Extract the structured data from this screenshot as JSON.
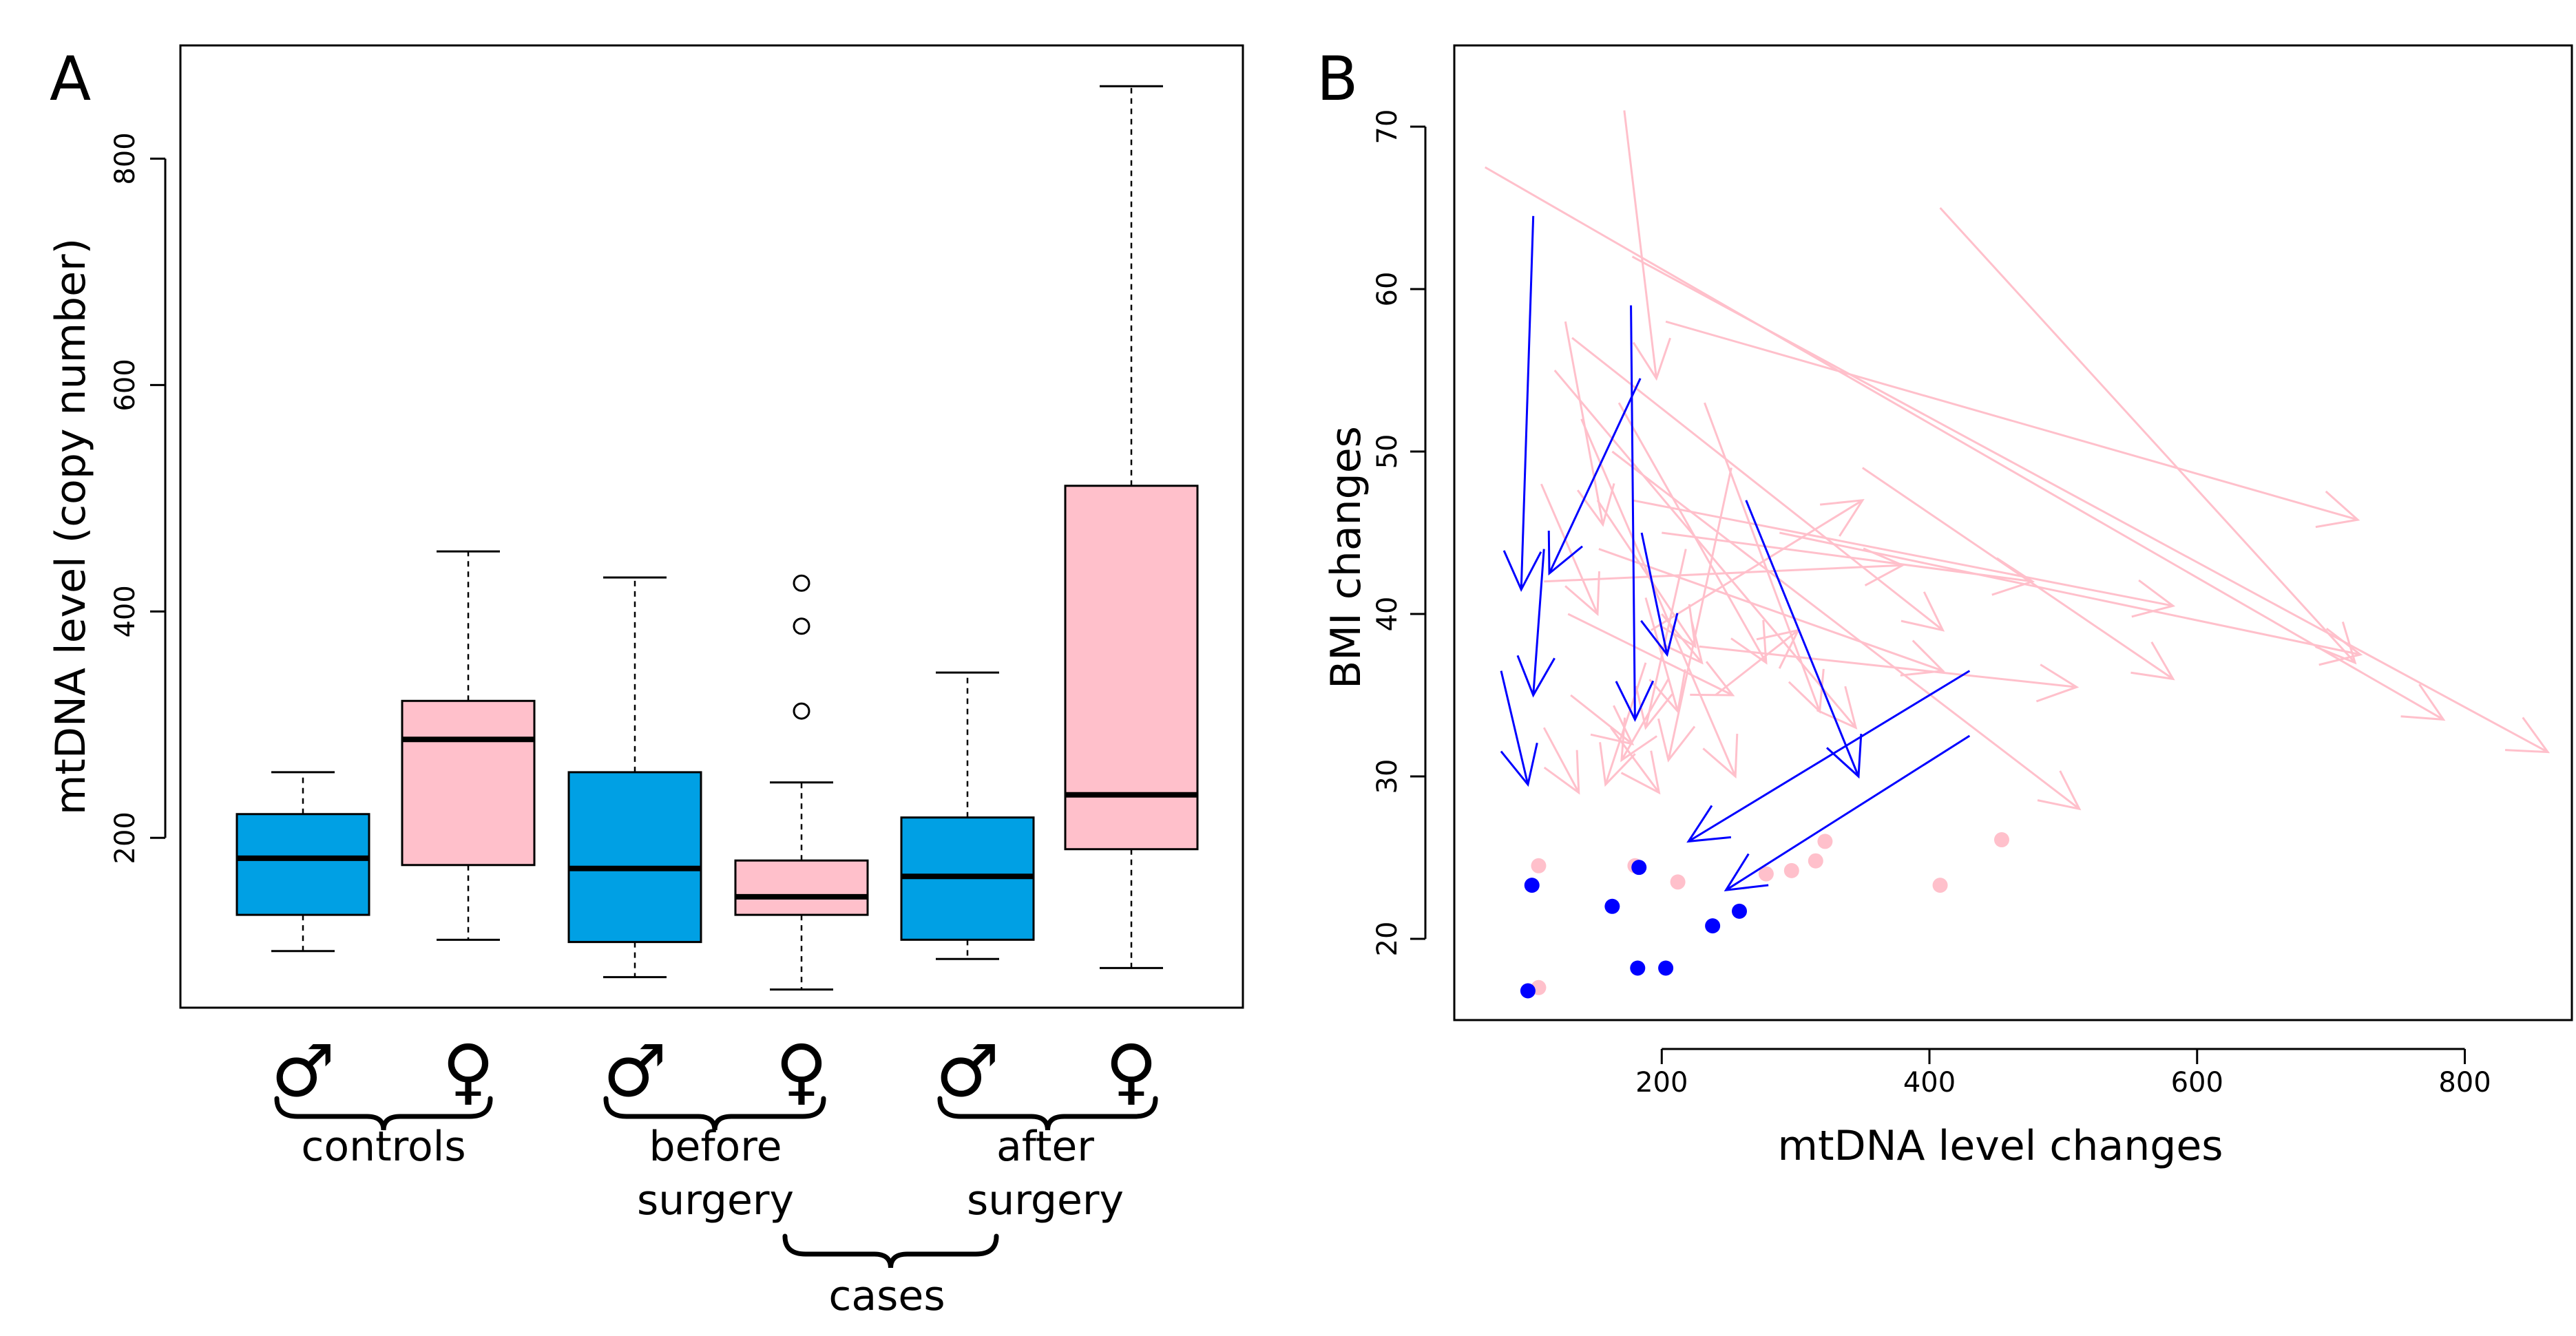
{
  "chart_data": [
    {
      "panel_label": "A",
      "type": "box",
      "ylabel": "mtDNA level (copy number)",
      "ylim": [
        50,
        900
      ],
      "yticks": [
        200,
        400,
        600,
        800
      ],
      "groups": [
        {
          "symbol": "♂",
          "sex": "male",
          "color": "#00a0e4",
          "min": 100,
          "q1": 132,
          "median": 182,
          "q3": 221,
          "max": 258,
          "outliers": []
        },
        {
          "symbol": "♀",
          "sex": "female",
          "color": "#ffc0cb",
          "min": 110,
          "q1": 176,
          "median": 287,
          "q3": 321,
          "max": 453,
          "outliers": []
        },
        {
          "symbol": "♂",
          "sex": "male",
          "color": "#00a0e4",
          "min": 77,
          "q1": 108,
          "median": 173,
          "q3": 258,
          "max": 430,
          "outliers": []
        },
        {
          "symbol": "♀",
          "sex": "female",
          "color": "#ffc0cb",
          "min": 66,
          "q1": 132,
          "median": 148,
          "q3": 180,
          "max": 249,
          "outliers": [
            312,
            387,
            425
          ]
        },
        {
          "symbol": "♂",
          "sex": "male",
          "color": "#00a0e4",
          "min": 93,
          "q1": 110,
          "median": 166,
          "q3": 218,
          "max": 346,
          "outliers": []
        },
        {
          "symbol": "♀",
          "sex": "female",
          "color": "#ffc0cb",
          "min": 85,
          "q1": 190,
          "median": 238,
          "q3": 511,
          "max": 864,
          "outliers": []
        }
      ],
      "group_labels": [
        {
          "text": "controls"
        },
        {
          "text": "before surgery",
          "lines": [
            "before",
            "surgery"
          ]
        },
        {
          "text": "after surgery",
          "lines": [
            "after",
            "surgery"
          ]
        },
        {
          "text": "cases"
        }
      ]
    },
    {
      "panel_label": "B",
      "type": "scatter",
      "xlabel": "mtDNA level changes",
      "ylabel": "BMI changes",
      "xlim": [
        45,
        880
      ],
      "ylim": [
        15,
        75
      ],
      "xticks": [
        200,
        400,
        600,
        800
      ],
      "yticks": [
        20,
        30,
        40,
        50,
        60,
        70
      ],
      "series": [
        {
          "name": "female",
          "color": "#ffc0cb",
          "arrows": [
            [
              68,
              67.5,
              784,
              33.5
            ],
            [
              178,
              62,
              862,
              31.5
            ],
            [
              203,
              58,
              720,
              45.8
            ],
            [
              133,
              57,
              410,
              39
            ],
            [
              120,
              55,
              345,
              33
            ],
            [
              140,
              52,
              255,
              30
            ],
            [
              163,
              50,
              512,
              28
            ],
            [
              178,
              47,
              582,
              40.5
            ],
            [
              200,
              45,
              477,
              42
            ],
            [
              153,
              44,
              410,
              36.5
            ],
            [
              112,
              42,
              380,
              43
            ],
            [
              130,
              40,
              253,
              35
            ],
            [
              192,
              39,
              350,
              47
            ],
            [
              228,
              38,
              510,
              35.5
            ],
            [
              288,
              45,
              722,
              37.5
            ],
            [
              350,
              49,
              582,
              36
            ],
            [
              168,
              53,
              278,
              37
            ],
            [
              232,
              53,
              318,
              34
            ],
            [
              188,
              41,
              212,
              34
            ],
            [
              252,
              49,
              205,
              31
            ],
            [
              188,
              37,
              158,
              29.5
            ],
            [
              132,
              35,
              178,
              32
            ],
            [
              112,
              33,
              138,
              29
            ],
            [
              218,
              44,
              188,
              33
            ],
            [
              205,
              36,
              170,
              31
            ],
            [
              152,
              47,
              225,
              38
            ],
            [
              128,
              58,
              156,
              45.5
            ],
            [
              240,
              35,
              302,
              39
            ],
            [
              110,
              48,
              152,
              40
            ],
            [
              162,
              33,
              198,
              29
            ],
            [
              408,
              65,
              718,
              37
            ],
            [
              172,
              71,
              196,
              54.5
            ],
            [
              200,
              40,
              230,
              37
            ]
          ],
          "points": [
            [
              108,
              24.5
            ],
            [
              108,
              17
            ],
            [
              180,
              24.5
            ],
            [
              212,
              23.5
            ],
            [
              278,
              24
            ],
            [
              297,
              24.2
            ],
            [
              315,
              24.8
            ],
            [
              322,
              26
            ],
            [
              408,
              23.3
            ],
            [
              454,
              26.1
            ]
          ]
        },
        {
          "name": "male",
          "color": "#0000ff",
          "arrows": [
            [
              104,
              64.5,
              95,
              41.5
            ],
            [
              184,
              54.5,
              116,
              42.5
            ],
            [
              177,
              59,
              180,
              33.5
            ],
            [
              185,
              45,
              204,
              37.5
            ],
            [
              112,
              44,
              104,
              35
            ],
            [
              80,
              36.5,
              100,
              29.5
            ],
            [
              263,
              47,
              347,
              30
            ],
            [
              430,
              36.5,
              220,
              26
            ],
            [
              430,
              32.5,
              248,
              23
            ]
          ],
          "points": [
            [
              100,
              16.8
            ],
            [
              103,
              23.3
            ],
            [
              163,
              22
            ],
            [
              183,
              24.4
            ],
            [
              182,
              18.2
            ],
            [
              203,
              18.2
            ],
            [
              238,
              20.8
            ],
            [
              258,
              21.7
            ]
          ]
        }
      ]
    }
  ]
}
